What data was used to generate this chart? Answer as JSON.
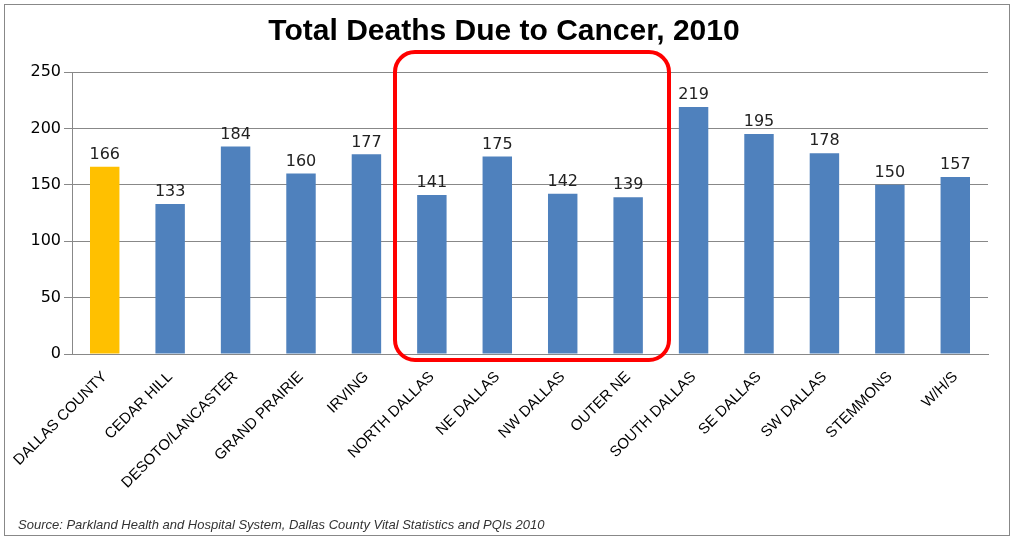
{
  "chart_data": {
    "type": "bar",
    "title": "Total Deaths Due to Cancer, 2010",
    "categories": [
      "DALLAS COUNTY",
      "CEDAR HILL",
      "DESOTO/LANCASTER",
      "GRAND PRAIRIE",
      "IRVING",
      "NORTH DALLAS",
      "NE DALLAS",
      "NW DALLAS",
      "OUTER NE",
      "SOUTH DALLAS",
      "SE DALLAS",
      "SW DALLAS",
      "STEMMONS",
      "W/H/S"
    ],
    "values": [
      166,
      133,
      184,
      160,
      177,
      141,
      175,
      142,
      139,
      219,
      195,
      178,
      150,
      157
    ],
    "colors": [
      "#ffc000",
      "#4f81bd",
      "#4f81bd",
      "#4f81bd",
      "#4f81bd",
      "#4f81bd",
      "#4f81bd",
      "#4f81bd",
      "#4f81bd",
      "#4f81bd",
      "#4f81bd",
      "#4f81bd",
      "#4f81bd",
      "#4f81bd"
    ],
    "ylim": [
      0,
      250
    ],
    "yticks": [
      0,
      50,
      100,
      150,
      200,
      250
    ],
    "grid": "y",
    "legend": false,
    "data_labels": true,
    "annotations": [
      "Source: Parkland Health and Hospital System, Dallas County Vital Statistics and PQIs 2010"
    ]
  }
}
